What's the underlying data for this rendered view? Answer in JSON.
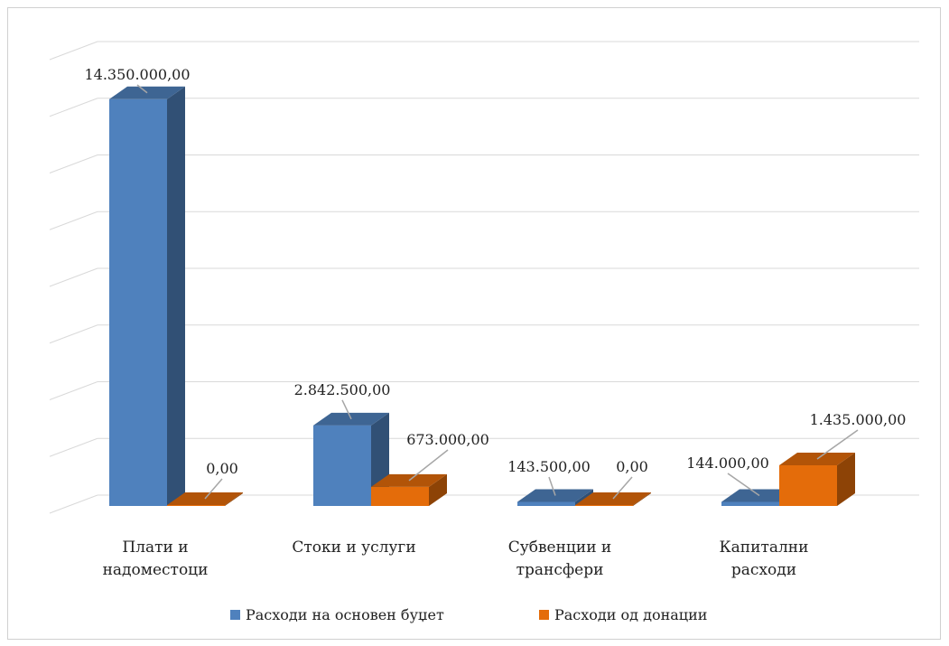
{
  "chart_data": {
    "type": "bar",
    "categories": [
      [
        "Плати и",
        "надоместоци"
      ],
      [
        "Стоки и услуги"
      ],
      [
        "Субвенции и",
        "трансфери"
      ],
      [
        "Капитални",
        "расходи"
      ]
    ],
    "series": [
      {
        "name": "Расходи на основен буџет",
        "values": [
          14350000,
          2842500,
          143500,
          144000
        ],
        "labels": [
          "14.350.000,00",
          "2.842.500,00",
          "143.500,00",
          "144.000,00"
        ],
        "color": "#4f81bd"
      },
      {
        "name": "Расходи од донации",
        "values": [
          0,
          673000,
          0,
          1435000
        ],
        "labels": [
          "0,00",
          "673.000,00",
          "0,00",
          "1.435.000,00"
        ],
        "color": "#e46c0a"
      }
    ],
    "ylim": [
      0,
      16000000
    ],
    "grid": true,
    "legend": "bottom",
    "style": "3d-clustered-column"
  }
}
